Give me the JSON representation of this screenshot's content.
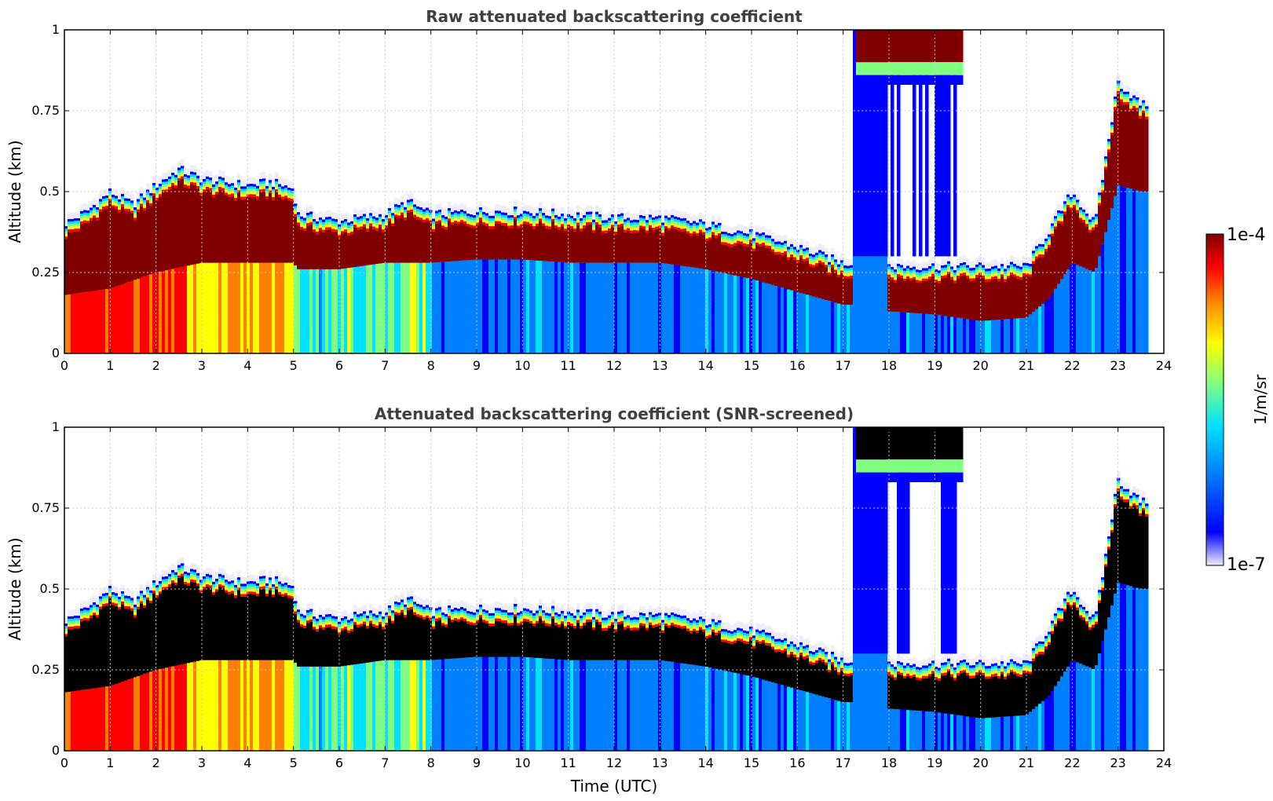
{
  "figure": {
    "xlabel": "Time (UTC)",
    "colorbar": {
      "label": "1/m/sr",
      "max_label": "1e-4",
      "min_label": "1e-7",
      "scale": "log",
      "range": [
        1e-07,
        0.0001
      ]
    },
    "colors": {
      "title": "#404040",
      "grid": "#c8c8c8",
      "colormap": [
        "#eeeefb",
        "#0000ff",
        "#0080ff",
        "#00e0ff",
        "#80ff80",
        "#ffff00",
        "#ff8000",
        "#ff0000",
        "#800000"
      ],
      "saturated_screened": "#000000"
    }
  },
  "chart_data": [
    {
      "type": "heatmap",
      "title": "Raw attenuated backscattering coefficient",
      "xlabel": "",
      "ylabel": "Altitude (km)",
      "xlim": [
        0,
        24
      ],
      "ylim": [
        0,
        1
      ],
      "xticks": [
        "0",
        "1",
        "2",
        "3",
        "4",
        "5",
        "6",
        "7",
        "8",
        "9",
        "10",
        "11",
        "12",
        "13",
        "14",
        "15",
        "16",
        "17",
        "18",
        "19",
        "20",
        "21",
        "22",
        "23",
        "24"
      ],
      "yticks": [
        "0",
        "0.25",
        "0.5",
        "0.75",
        "1"
      ],
      "grid": true,
      "layer_top_km": [
        [
          0,
          0.4
        ],
        [
          0.5,
          0.44
        ],
        [
          1,
          0.5
        ],
        [
          1.5,
          0.46
        ],
        [
          2,
          0.52
        ],
        [
          2.5,
          0.57
        ],
        [
          3,
          0.54
        ],
        [
          3.5,
          0.53
        ],
        [
          4,
          0.52
        ],
        [
          4.5,
          0.53
        ],
        [
          5,
          0.51
        ],
        [
          5.1,
          0.43
        ],
        [
          6,
          0.41
        ],
        [
          7,
          0.43
        ],
        [
          7.5,
          0.47
        ],
        [
          8,
          0.43
        ],
        [
          9,
          0.44
        ],
        [
          10,
          0.44
        ],
        [
          11,
          0.43
        ],
        [
          12,
          0.42
        ],
        [
          13,
          0.42
        ],
        [
          14,
          0.4
        ],
        [
          15,
          0.37
        ],
        [
          16,
          0.33
        ],
        [
          17,
          0.28
        ],
        [
          17.2,
          0.28
        ],
        [
          18,
          0.27
        ],
        [
          19,
          0.27
        ],
        [
          20,
          0.27
        ],
        [
          21,
          0.27
        ],
        [
          21.5,
          0.38
        ],
        [
          22,
          0.5
        ],
        [
          22.5,
          0.4
        ],
        [
          23,
          0.84
        ],
        [
          23.5,
          0.77
        ]
      ],
      "layer_base_km": [
        [
          0,
          0.18
        ],
        [
          1,
          0.2
        ],
        [
          2,
          0.25
        ],
        [
          3,
          0.28
        ],
        [
          4,
          0.28
        ],
        [
          5,
          0.28
        ],
        [
          5.1,
          0.26
        ],
        [
          6,
          0.26
        ],
        [
          7,
          0.28
        ],
        [
          8,
          0.28
        ],
        [
          9,
          0.29
        ],
        [
          10,
          0.29
        ],
        [
          11,
          0.28
        ],
        [
          12,
          0.28
        ],
        [
          13,
          0.28
        ],
        [
          14,
          0.26
        ],
        [
          15,
          0.23
        ],
        [
          16,
          0.19
        ],
        [
          17,
          0.15
        ],
        [
          17.2,
          0.15
        ],
        [
          18,
          0.13
        ],
        [
          19,
          0.12
        ],
        [
          20,
          0.1
        ],
        [
          21,
          0.11
        ],
        [
          21.5,
          0.17
        ],
        [
          22,
          0.28
        ],
        [
          22.5,
          0.25
        ],
        [
          23,
          0.52
        ],
        [
          23.5,
          0.5
        ]
      ],
      "high_cloud": {
        "x": [
          17.3,
          19.6
        ],
        "y": [
          0.85,
          1.0
        ]
      },
      "screened": false
    },
    {
      "type": "heatmap",
      "title": "Attenuated backscattering coefficient (SNR-screened)",
      "xlabel": "Time (UTC)",
      "ylabel": "Altitude (km)",
      "xlim": [
        0,
        24
      ],
      "ylim": [
        0,
        1
      ],
      "xticks": [
        "0",
        "1",
        "2",
        "3",
        "4",
        "5",
        "6",
        "7",
        "8",
        "9",
        "10",
        "11",
        "12",
        "13",
        "14",
        "15",
        "16",
        "17",
        "18",
        "19",
        "20",
        "21",
        "22",
        "23",
        "24"
      ],
      "yticks": [
        "0",
        "0.25",
        "0.5",
        "0.75",
        "1"
      ],
      "grid": true,
      "layer_top_km": [
        [
          0,
          0.4
        ],
        [
          0.5,
          0.44
        ],
        [
          1,
          0.5
        ],
        [
          1.5,
          0.46
        ],
        [
          2,
          0.52
        ],
        [
          2.5,
          0.57
        ],
        [
          3,
          0.54
        ],
        [
          3.5,
          0.53
        ],
        [
          4,
          0.52
        ],
        [
          4.5,
          0.53
        ],
        [
          5,
          0.51
        ],
        [
          5.1,
          0.43
        ],
        [
          6,
          0.41
        ],
        [
          7,
          0.43
        ],
        [
          7.5,
          0.47
        ],
        [
          8,
          0.43
        ],
        [
          9,
          0.44
        ],
        [
          10,
          0.44
        ],
        [
          11,
          0.43
        ],
        [
          12,
          0.42
        ],
        [
          13,
          0.42
        ],
        [
          14,
          0.4
        ],
        [
          15,
          0.37
        ],
        [
          16,
          0.33
        ],
        [
          17,
          0.28
        ],
        [
          17.2,
          0.28
        ],
        [
          18,
          0.27
        ],
        [
          19,
          0.27
        ],
        [
          20,
          0.27
        ],
        [
          21,
          0.27
        ],
        [
          21.5,
          0.38
        ],
        [
          22,
          0.5
        ],
        [
          22.5,
          0.4
        ],
        [
          23,
          0.84
        ],
        [
          23.5,
          0.77
        ]
      ],
      "layer_base_km": [
        [
          0,
          0.18
        ],
        [
          1,
          0.2
        ],
        [
          2,
          0.25
        ],
        [
          3,
          0.28
        ],
        [
          4,
          0.28
        ],
        [
          5,
          0.28
        ],
        [
          5.1,
          0.26
        ],
        [
          6,
          0.26
        ],
        [
          7,
          0.28
        ],
        [
          8,
          0.28
        ],
        [
          9,
          0.29
        ],
        [
          10,
          0.29
        ],
        [
          11,
          0.28
        ],
        [
          12,
          0.28
        ],
        [
          13,
          0.28
        ],
        [
          14,
          0.26
        ],
        [
          15,
          0.23
        ],
        [
          16,
          0.19
        ],
        [
          17,
          0.15
        ],
        [
          17.2,
          0.15
        ],
        [
          18,
          0.13
        ],
        [
          19,
          0.12
        ],
        [
          20,
          0.1
        ],
        [
          21,
          0.11
        ],
        [
          21.5,
          0.17
        ],
        [
          22,
          0.28
        ],
        [
          22.5,
          0.25
        ],
        [
          23,
          0.52
        ],
        [
          23.5,
          0.5
        ]
      ],
      "high_cloud": {
        "x": [
          17.3,
          19.6
        ],
        "y": [
          0.85,
          1.0
        ]
      },
      "screened": true
    }
  ]
}
